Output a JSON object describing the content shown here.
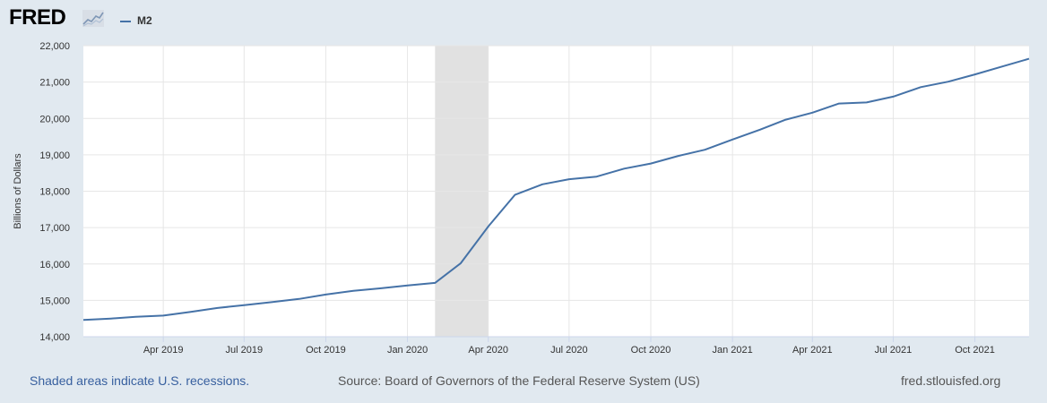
{
  "header": {
    "logo_text": "FRED",
    "logo_icon": "line-chart-icon",
    "legend_label": "M2"
  },
  "colors": {
    "series": "#4572a7",
    "recession": "#e1e1e1",
    "grid": "#e6e6e6",
    "plot_bg": "#ffffff",
    "page_bg": "#e1e9f0"
  },
  "footer": {
    "recession_note": "Shaded areas indicate U.S. recessions.",
    "source": "Source: Board of Governors of the Federal Reserve System (US)",
    "site": "fred.stlouisfed.org"
  },
  "chart_data": {
    "type": "line",
    "ylabel": "Billions of Dollars",
    "ylim": [
      14000,
      22000
    ],
    "yticks": [
      14000,
      15000,
      16000,
      17000,
      18000,
      19000,
      20000,
      21000,
      22000
    ],
    "ytick_labels": [
      "14,000",
      "15,000",
      "16,000",
      "17,000",
      "18,000",
      "19,000",
      "20,000",
      "21,000",
      "22,000"
    ],
    "xlim": [
      "2019-01-01",
      "2021-12-01"
    ],
    "xticks": [
      "2019-04-01",
      "2019-07-01",
      "2019-10-01",
      "2020-01-01",
      "2020-04-01",
      "2020-07-01",
      "2020-10-01",
      "2021-01-01",
      "2021-04-01",
      "2021-07-01",
      "2021-10-01"
    ],
    "xtick_labels": [
      "Apr 2019",
      "Jul 2019",
      "Oct 2019",
      "Jan 2020",
      "Apr 2020",
      "Jul 2020",
      "Oct 2020",
      "Jan 2021",
      "Apr 2021",
      "Jul 2021",
      "Oct 2021"
    ],
    "grid": true,
    "recessions": [
      {
        "start": "2020-02-01",
        "end": "2020-04-01"
      }
    ],
    "series": [
      {
        "name": "M2",
        "x": [
          "2019-01-01",
          "2019-02-01",
          "2019-03-01",
          "2019-04-01",
          "2019-05-01",
          "2019-06-01",
          "2019-07-01",
          "2019-08-01",
          "2019-09-01",
          "2019-10-01",
          "2019-11-01",
          "2019-12-01",
          "2020-01-01",
          "2020-02-01",
          "2020-03-01",
          "2020-04-01",
          "2020-05-01",
          "2020-06-01",
          "2020-07-01",
          "2020-08-01",
          "2020-09-01",
          "2020-10-01",
          "2020-11-01",
          "2020-12-01",
          "2021-01-01",
          "2021-02-01",
          "2021-03-01",
          "2021-04-01",
          "2021-05-01",
          "2021-06-01",
          "2021-07-01",
          "2021-08-01",
          "2021-09-01",
          "2021-10-01",
          "2021-11-01",
          "2021-12-01"
        ],
        "values": [
          14460,
          14500,
          14550,
          14580,
          14680,
          14790,
          14870,
          14950,
          15040,
          15160,
          15260,
          15330,
          15410,
          15480,
          16020,
          17030,
          17900,
          18190,
          18330,
          18400,
          18620,
          18760,
          18970,
          19140,
          19420,
          19690,
          19960,
          20160,
          20410,
          20440,
          20600,
          20860,
          21010,
          21210,
          21430,
          21640
        ]
      }
    ]
  }
}
